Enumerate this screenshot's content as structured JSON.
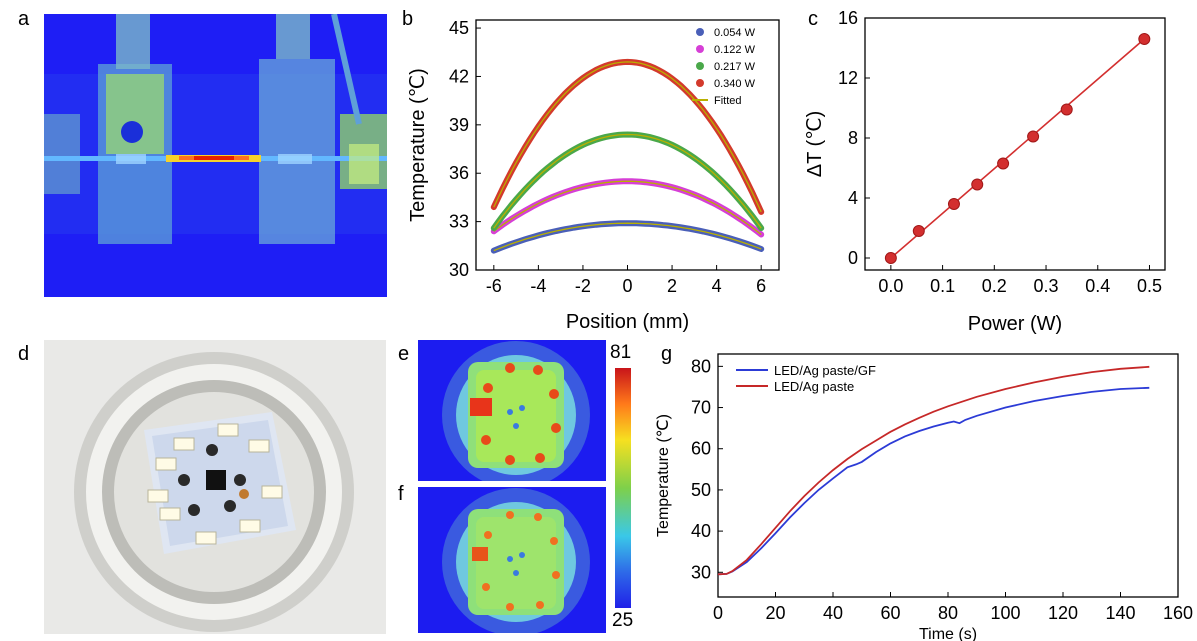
{
  "panels": {
    "a": "a",
    "b": "b",
    "c": "c",
    "d": "d",
    "e": "e",
    "f": "f",
    "g": "g"
  },
  "colorbar": {
    "max_label": "81",
    "min_label": "25"
  },
  "chart_data": [
    {
      "id": "b",
      "type": "line",
      "title": "",
      "xlabel": "Position (mm)",
      "ylabel": "Temperature (℃)",
      "xlim": [
        -6.8,
        6.8
      ],
      "ylim": [
        30,
        45.5
      ],
      "xticks": [
        -6,
        -4,
        -2,
        0,
        2,
        4,
        6
      ],
      "yticks": [
        30,
        33,
        36,
        39,
        42,
        45
      ],
      "series": [
        {
          "name": "0.054 W",
          "color": "#4a5fb8",
          "peak": 32.9,
          "edge_left": 31.2,
          "edge_right": 31.3
        },
        {
          "name": "0.122 W",
          "color": "#d63fd6",
          "peak": 35.5,
          "edge_left": 32.4,
          "edge_right": 32.2
        },
        {
          "name": "0.217 W",
          "color": "#4aa84a",
          "peak": 38.4,
          "edge_left": 32.6,
          "edge_right": 32.6
        },
        {
          "name": "0.340 W",
          "color": "#d33a2c",
          "peak": 42.9,
          "edge_left": 33.9,
          "edge_right": 33.6
        }
      ],
      "fitted_label": "Fitted",
      "fitted_color": "#b9b000"
    },
    {
      "id": "c",
      "type": "scatter",
      "title": "",
      "xlabel": "Power (W)",
      "ylabel": "ΔT (℃)",
      "xlim": [
        -0.05,
        0.53
      ],
      "ylim": [
        -0.8,
        16
      ],
      "xticks": [
        0.0,
        0.1,
        0.2,
        0.3,
        0.4,
        0.5
      ],
      "xtick_labels": [
        "0.0",
        "0.1",
        "0.2",
        "0.3",
        "0.4",
        "0.5"
      ],
      "yticks": [
        0,
        4,
        8,
        12,
        16
      ],
      "x": [
        0.0,
        0.054,
        0.122,
        0.167,
        0.217,
        0.275,
        0.34,
        0.49
      ],
      "y": [
        0.0,
        1.8,
        3.6,
        4.9,
        6.3,
        8.1,
        9.9,
        14.6
      ],
      "fit": {
        "x": [
          0.0,
          0.49
        ],
        "y": [
          0.0,
          14.6
        ]
      },
      "color": "#d32f2f"
    },
    {
      "id": "g",
      "type": "line",
      "title": "",
      "xlabel": "Time (s)",
      "ylabel": "Temperature (℃)",
      "xlim": [
        0,
        160
      ],
      "ylim": [
        24,
        83
      ],
      "xticks": [
        0,
        20,
        40,
        60,
        80,
        100,
        120,
        140,
        160
      ],
      "yticks": [
        30,
        40,
        50,
        60,
        70,
        80
      ],
      "legend": [
        "LED/Ag paste/GF",
        "LED/Ag paste"
      ],
      "series": [
        {
          "name": "LED/Ag paste/GF",
          "color": "#2c3bd6",
          "x": [
            0,
            3,
            5,
            10,
            15,
            20,
            25,
            30,
            35,
            40,
            45,
            48,
            50,
            55,
            60,
            65,
            70,
            75,
            80,
            82,
            84,
            86,
            90,
            100,
            110,
            120,
            130,
            140,
            150
          ],
          "y": [
            29.5,
            29.6,
            30.2,
            32.5,
            35.8,
            39.5,
            43.3,
            46.8,
            50,
            52.8,
            55.5,
            56.2,
            56.8,
            59.2,
            61.3,
            63,
            64.3,
            65.4,
            66.3,
            66.6,
            66.2,
            67,
            68,
            70,
            71.6,
            72.8,
            73.8,
            74.5,
            74.8
          ]
        },
        {
          "name": "LED/Ag paste",
          "color": "#c62828",
          "x": [
            0,
            3,
            5,
            10,
            15,
            20,
            25,
            30,
            35,
            40,
            45,
            50,
            55,
            60,
            65,
            70,
            75,
            80,
            90,
            100,
            110,
            120,
            130,
            140,
            150
          ],
          "y": [
            29.5,
            29.6,
            30.3,
            33,
            36.8,
            40.8,
            44.8,
            48.5,
            51.8,
            54.8,
            57.5,
            59.9,
            62,
            64.1,
            65.9,
            67.5,
            69,
            70.3,
            72.6,
            74.5,
            76.1,
            77.5,
            78.6,
            79.4,
            79.9
          ]
        }
      ]
    }
  ]
}
